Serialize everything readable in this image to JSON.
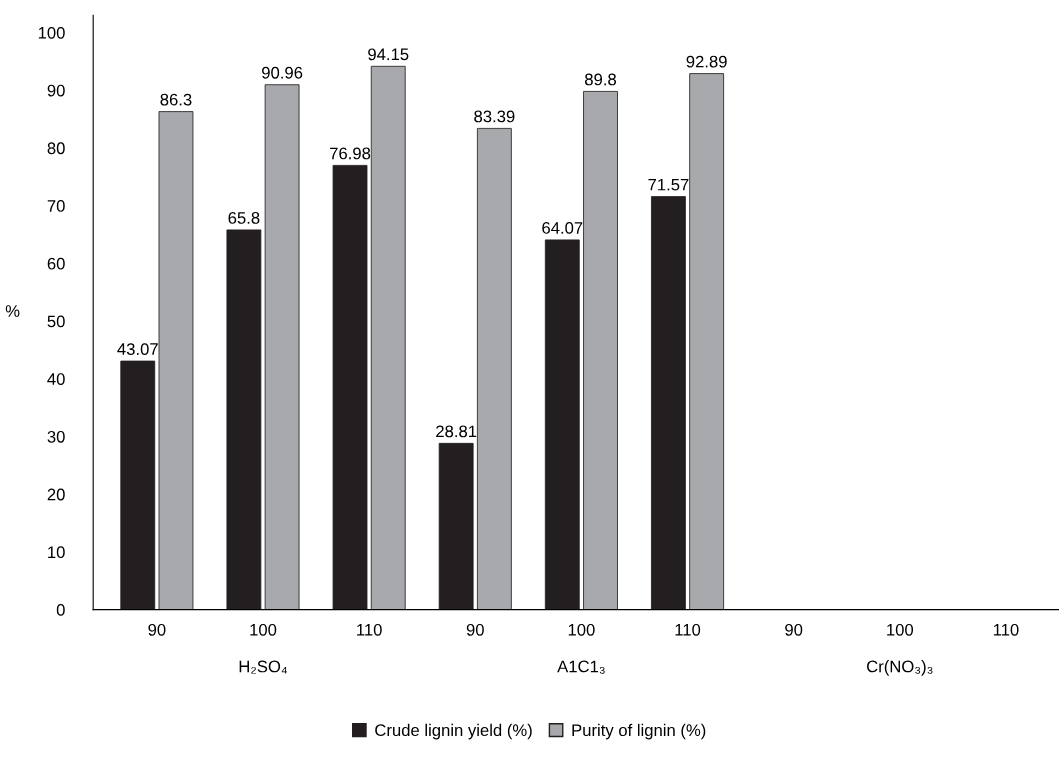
{
  "chart_data": {
    "type": "bar",
    "ylabel": "%",
    "categories": [
      "90",
      "100",
      "110",
      "90",
      "100",
      "110",
      "90",
      "100",
      "110"
    ],
    "series": [
      {
        "name": "Crude lignin yield (%)",
        "color": "#231f20",
        "values": [
          43.07,
          65.8,
          76.98,
          28.81,
          64.07,
          71.57,
          null,
          null,
          null
        ]
      },
      {
        "name": "Purity of lignin (%)",
        "color": "#a7a9ac",
        "values": [
          86.3,
          90.96,
          94.15,
          83.39,
          89.8,
          92.89,
          null,
          null,
          null
        ]
      }
    ],
    "annotations": [
      "H₂SO₄",
      "A1C1₃",
      "Cr(NO₃)₃"
    ],
    "ylim": [
      0,
      103
    ],
    "yticks": [
      0,
      10,
      20,
      30,
      40,
      50,
      60,
      70,
      80,
      90,
      100
    ],
    "data_labels": true,
    "grid": false,
    "legend": "bottom"
  }
}
